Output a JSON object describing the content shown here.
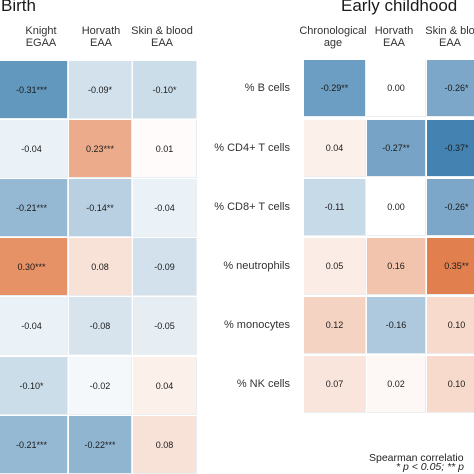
{
  "chart_data": [
    {
      "type": "heatmap",
      "title": "Birth",
      "columns": [
        "Knight\nEGAA",
        "Horvath\nEAA",
        "Skin & blood\nEAA"
      ],
      "rows": 7,
      "values": [
        [
          -0.31,
          -0.09,
          -0.1
        ],
        [
          -0.04,
          0.23,
          0.01
        ],
        [
          -0.21,
          -0.14,
          -0.04
        ],
        [
          0.3,
          0.08,
          -0.09
        ],
        [
          -0.04,
          -0.08,
          -0.05
        ],
        [
          -0.1,
          -0.02,
          0.04
        ],
        [
          -0.21,
          -0.22,
          0.08
        ]
      ],
      "labels": [
        [
          "-0.31***",
          "-0.09*",
          "-0.10*"
        ],
        [
          "-0.04",
          "0.23***",
          "0.01"
        ],
        [
          "-0.21***",
          "-0.14**",
          "-0.04"
        ],
        [
          "0.30***",
          "0.08",
          "-0.09"
        ],
        [
          "-0.04",
          "-0.08",
          "-0.05"
        ],
        [
          "-0.10*",
          "-0.02",
          "0.04"
        ],
        [
          "-0.21***",
          "-0.22***",
          "0.08"
        ]
      ]
    },
    {
      "type": "heatmap",
      "title": "Early childhood",
      "columns": [
        "Chronological\nage",
        "Horvath\nEAA",
        "Skin & blo\nEAA"
      ],
      "rows": [
        "% B cells",
        "% CD4+ T cells",
        "% CD8+ T cells",
        "% neutrophils",
        "% monocytes",
        "% NK cells"
      ],
      "values": [
        [
          -0.29,
          0.0,
          -0.26
        ],
        [
          0.04,
          -0.27,
          -0.37
        ],
        [
          -0.11,
          0.0,
          -0.26
        ],
        [
          0.05,
          0.16,
          0.35
        ],
        [
          0.12,
          -0.16,
          0.1
        ],
        [
          0.07,
          0.02,
          0.1
        ]
      ],
      "labels": [
        [
          "-0.29**",
          "0.00",
          "-0.26*"
        ],
        [
          "0.04",
          "-0.27**",
          "-0.37*"
        ],
        [
          "-0.11",
          "0.00",
          "-0.26*"
        ],
        [
          "0.05",
          "0.16",
          "0.35**"
        ],
        [
          "0.12",
          "-0.16",
          "0.10"
        ],
        [
          "0.07",
          "0.02",
          "0.10"
        ]
      ]
    }
  ],
  "colors": {
    "negative": "#3f7faf",
    "positive": "#e0743f",
    "neutral": "#ffffff"
  },
  "legend_title": "Spearman correlatio",
  "footnote": "* p < 0.05; ** p"
}
